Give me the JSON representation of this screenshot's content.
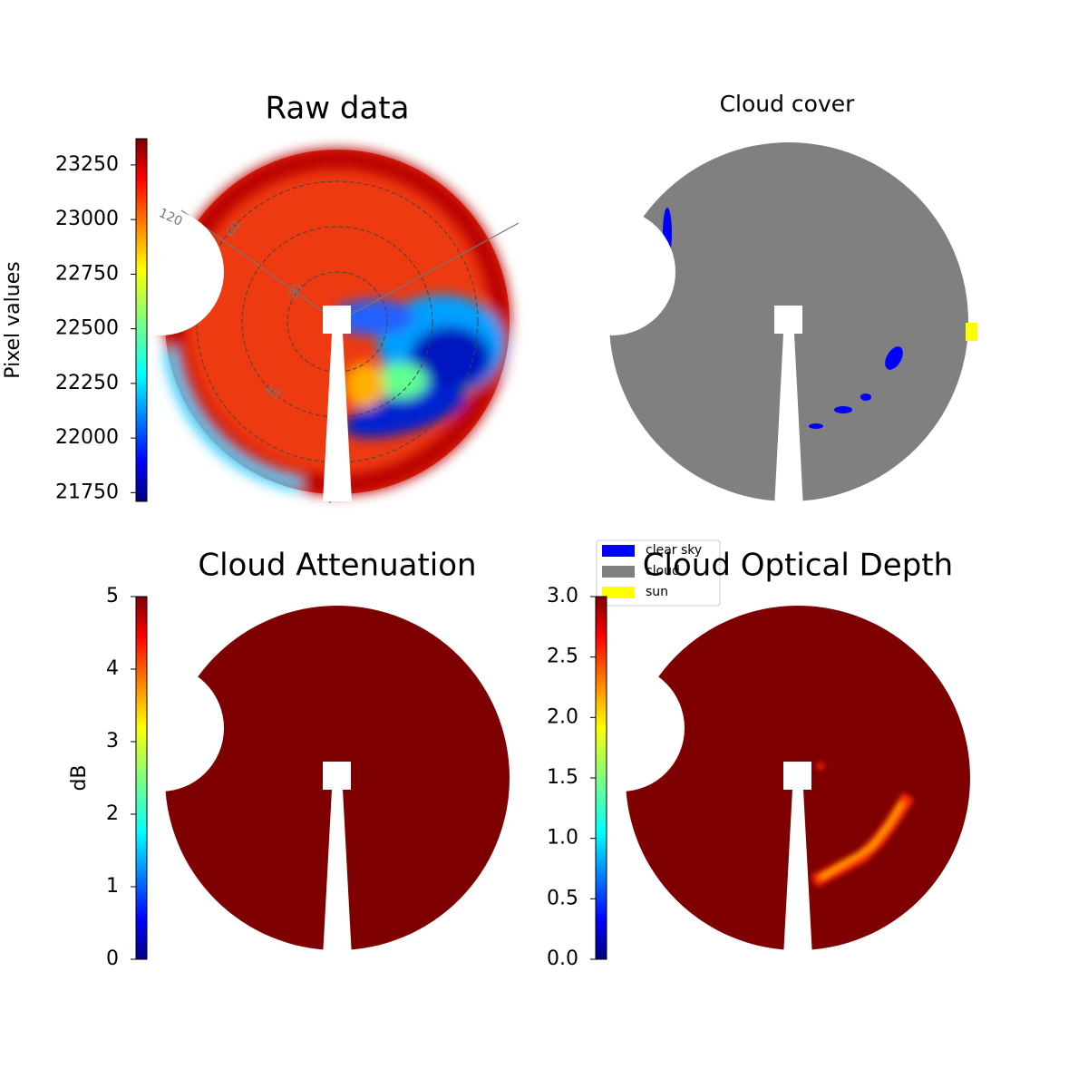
{
  "chart_data": [
    {
      "type": "image",
      "title": "Raw data",
      "ylabel": "Pixel values",
      "ylim": [
        21710,
        23370
      ],
      "yticks": [
        21750,
        22000,
        22250,
        22500,
        22750,
        23000,
        23250
      ],
      "colormap": "jet",
      "annotations": [
        "120",
        "60",
        "20",
        "40"
      ]
    },
    {
      "type": "category-image",
      "title": "Cloud cover",
      "series": [
        {
          "name": "clear sky",
          "color": "#0000ff"
        },
        {
          "name": "cloud",
          "color": "#808080"
        },
        {
          "name": "sun",
          "color": "#ffff00"
        }
      ]
    },
    {
      "type": "image",
      "title": "Cloud Attenuation",
      "ylabel": "dB",
      "ylim": [
        0,
        5
      ],
      "yticks": [
        0,
        1,
        2,
        3,
        4,
        5
      ],
      "colormap": "jet"
    },
    {
      "type": "image",
      "title": "Cloud Optical Depth",
      "ylim": [
        0,
        3
      ],
      "yticks": [
        {
          "value": 0,
          "label": "0.0"
        },
        {
          "value": 0.5,
          "label": "0.5"
        },
        {
          "value": 1,
          "label": "1.0"
        },
        {
          "value": 1.5,
          "label": "1.5"
        },
        {
          "value": 2,
          "label": "2.0"
        },
        {
          "value": 2.5,
          "label": "2.5"
        },
        {
          "value": 3,
          "label": "3.0"
        }
      ],
      "colormap": "jet"
    }
  ]
}
